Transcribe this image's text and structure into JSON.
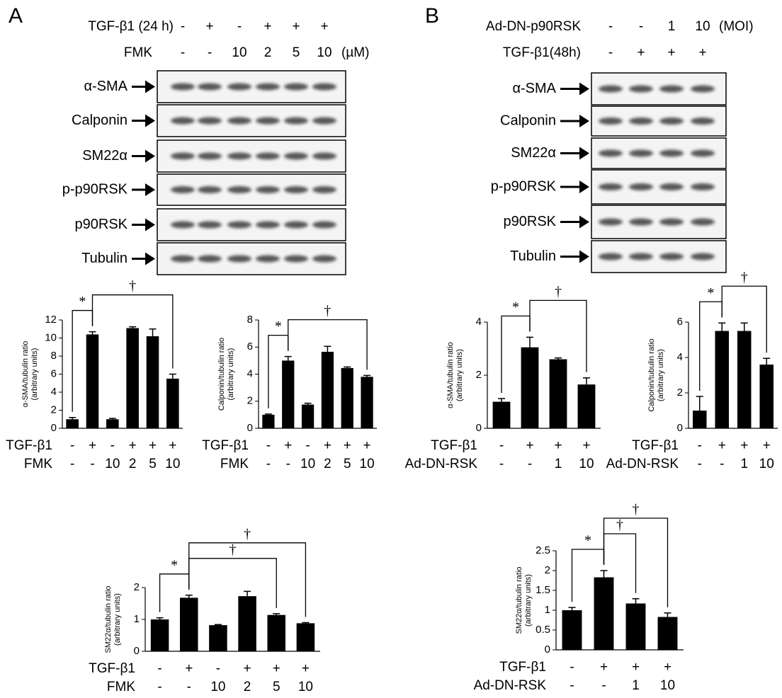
{
  "panels": [
    {
      "label": "A",
      "conditions": [
        {
          "name": "TGF-β1 (24 h)",
          "values": [
            "-",
            "+",
            "-",
            "+",
            "+",
            "+"
          ]
        },
        {
          "name": "FMK",
          "values": [
            "-",
            "-",
            "10",
            "2",
            "5",
            "10"
          ],
          "unit": "(µM)"
        }
      ],
      "blots": [
        "α-SMA",
        "Calponin",
        "SM22α",
        "p-p90RSK",
        "p90RSK",
        "Tubulin"
      ]
    },
    {
      "label": "B",
      "conditions": [
        {
          "name": "Ad-DN-p90RSK",
          "values": [
            "-",
            "-",
            "1",
            "10"
          ],
          "unit": "(MOI)"
        },
        {
          "name": "TGF-β1(48h)",
          "values": [
            "-",
            "+",
            "+",
            "+"
          ]
        }
      ],
      "blots": [
        "α-SMA",
        "Calponin",
        "SM22α",
        "p-p90RSK",
        "p90RSK",
        "Tubulin"
      ]
    }
  ],
  "chart_data": [
    {
      "type": "bar",
      "ylabel": [
        "α-SMA/tubulin ratio",
        "(arbitrary units)"
      ],
      "conditions": [
        {
          "name": "TGF-β1",
          "values": [
            "-",
            "+",
            "-",
            "+",
            "+",
            "+"
          ]
        },
        {
          "name": "FMK",
          "values": [
            "-",
            "-",
            "10",
            "2",
            "5",
            "10"
          ]
        }
      ],
      "values": [
        1.0,
        10.4,
        1.0,
        11.1,
        10.2,
        5.5
      ],
      "errors": [
        0.2,
        0.3,
        0.1,
        0.15,
        0.8,
        0.5
      ],
      "color": "#000000",
      "ylim": [
        0,
        12
      ],
      "yticks": [
        0,
        2,
        4,
        6,
        8,
        10,
        12
      ],
      "brackets": [
        {
          "text": "*",
          "between": [
            0,
            1
          ]
        },
        {
          "text": "†",
          "between": [
            1,
            5
          ]
        }
      ]
    },
    {
      "type": "bar",
      "ylabel": [
        "Calponin/tubulin ratio",
        "(arbitrary units)"
      ],
      "conditions": [
        {
          "name": "TGF-β1",
          "values": [
            "-",
            "+",
            "-",
            "+",
            "+",
            "+"
          ]
        },
        {
          "name": "FMK",
          "values": [
            "-",
            "-",
            "10",
            "2",
            "5",
            "10"
          ]
        }
      ],
      "values": [
        1.0,
        5.0,
        1.75,
        5.65,
        4.45,
        3.8
      ],
      "errors": [
        0.05,
        0.3,
        0.1,
        0.4,
        0.08,
        0.1
      ],
      "color": "#000000",
      "ylim": [
        0,
        8
      ],
      "yticks": [
        0,
        2,
        4,
        6,
        8
      ],
      "brackets": [
        {
          "text": "*",
          "between": [
            0,
            1
          ]
        },
        {
          "text": "†",
          "between": [
            1,
            5
          ]
        }
      ]
    },
    {
      "type": "bar",
      "ylabel": [
        "α-SMA/tubulin ratio",
        "(arbitrary units)"
      ],
      "conditions": [
        {
          "name": "TGF-β1",
          "values": [
            "-",
            "+",
            "+",
            "+"
          ]
        },
        {
          "name": "Ad-DN-RSK",
          "values": [
            "-",
            "-",
            "1",
            "10"
          ]
        }
      ],
      "values": [
        1.0,
        3.05,
        2.6,
        1.65
      ],
      "errors": [
        0.12,
        0.38,
        0.05,
        0.25
      ],
      "color": "#000000",
      "ylim": [
        0,
        4
      ],
      "yticks": [
        0,
        2,
        4
      ],
      "brackets": [
        {
          "text": "*",
          "between": [
            0,
            1
          ]
        },
        {
          "text": "†",
          "between": [
            1,
            3
          ]
        }
      ]
    },
    {
      "type": "bar",
      "ylabel": [
        "Calponin/tubulin ratio",
        "(arbitrary units)"
      ],
      "conditions": [
        {
          "name": "TGF-β1",
          "values": [
            "-",
            "+",
            "+",
            "+"
          ]
        },
        {
          "name": "Ad-DN-RSK",
          "values": [
            "-",
            "-",
            "1",
            "10"
          ]
        }
      ],
      "values": [
        1.0,
        5.5,
        5.5,
        3.6
      ],
      "errors": [
        0.8,
        0.45,
        0.45,
        0.35
      ],
      "color": "#000000",
      "ylim": [
        0,
        6
      ],
      "yticks": [
        0,
        2,
        4,
        6
      ],
      "brackets": [
        {
          "text": "*",
          "between": [
            0,
            1
          ]
        },
        {
          "text": "†",
          "between": [
            1,
            3
          ]
        }
      ]
    },
    {
      "type": "bar",
      "ylabel": [
        "SM22α/tubulin ratio",
        "(arbitrary units)"
      ],
      "conditions": [
        {
          "name": "TGF-β1",
          "values": [
            "-",
            "+",
            "-",
            "+",
            "+",
            "+"
          ]
        },
        {
          "name": "FMK",
          "values": [
            "-",
            "-",
            "10",
            "2",
            "5",
            "10"
          ]
        }
      ],
      "values": [
        1.0,
        1.68,
        0.82,
        1.73,
        1.14,
        0.88
      ],
      "errors": [
        0.05,
        0.08,
        0.02,
        0.15,
        0.04,
        0.02
      ],
      "color": "#000000",
      "ylim": [
        0,
        2
      ],
      "yticks": [
        0,
        1,
        2
      ],
      "brackets": [
        {
          "text": "*",
          "between": [
            0,
            1
          ]
        },
        {
          "text": "†",
          "between": [
            1,
            4
          ]
        },
        {
          "text": "†",
          "between": [
            1,
            5
          ]
        }
      ]
    },
    {
      "type": "bar",
      "ylabel": [
        "SM22α/tubulin ratio",
        "(arbitrary units)"
      ],
      "conditions": [
        {
          "name": "TGF-β1",
          "values": [
            "-",
            "+",
            "+",
            "+"
          ]
        },
        {
          "name": "Ad-DN-RSK",
          "values": [
            "-",
            "-",
            "1",
            "10"
          ]
        }
      ],
      "values": [
        1.0,
        1.83,
        1.17,
        0.83
      ],
      "errors": [
        0.07,
        0.17,
        0.12,
        0.1
      ],
      "color": "#000000",
      "ylim": [
        0,
        2.5
      ],
      "yticks": [
        0,
        0.5,
        1,
        1.5,
        2,
        2.5
      ],
      "brackets": [
        {
          "text": "*",
          "between": [
            0,
            1
          ]
        },
        {
          "text": "†",
          "between": [
            1,
            2
          ]
        },
        {
          "text": "†",
          "between": [
            1,
            3
          ]
        }
      ]
    }
  ]
}
